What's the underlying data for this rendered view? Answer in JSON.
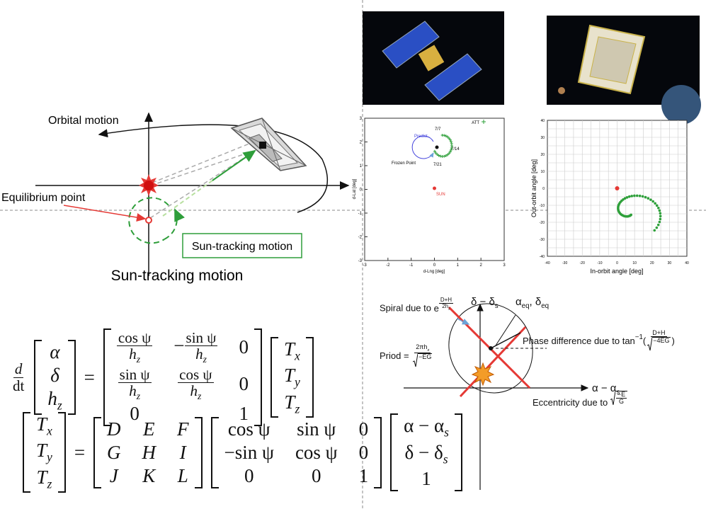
{
  "left_diagram": {
    "orbital_label": "Orbital motion",
    "equilibrium_label": "Equilibrium point",
    "box_label": "Sun-tracking motion",
    "caption": "Sun-tracking motion"
  },
  "plot_att": {
    "legend": "ATT",
    "predict": "Predict",
    "dates": [
      "7/7",
      "7/14",
      "7/21"
    ],
    "frozen": "Frozen Point",
    "sun": "SUN",
    "xlabel": "d-Lng [deg]",
    "ylabel": "d-Lat [deg]",
    "xticks": [
      "-3",
      "-2",
      "-1",
      "0",
      "1",
      "2",
      "3"
    ],
    "yticks": [
      "3",
      "2",
      "1",
      "0",
      "-1",
      "-2",
      "-3"
    ]
  },
  "plot_angle": {
    "xlabel": "In-orbit angle [deg]",
    "ylabel": "Out-orbit angle [deg]",
    "xticks": [
      "-40",
      "-30",
      "-20",
      "-10",
      "0",
      "10",
      "20",
      "30",
      "40"
    ],
    "yticks": [
      "40",
      "30",
      "20",
      "10",
      "0",
      "-10",
      "-20",
      "-30",
      "-40"
    ]
  },
  "phase": {
    "y_axis": {
      "b": "δ − δ",
      "s": "s"
    },
    "x_axis": {
      "b": "α − α",
      "s": "s"
    },
    "eq_point": [
      {
        "b": "α",
        "s": "eq"
      },
      ", ",
      {
        "b": "δ",
        "s": "eq"
      }
    ],
    "spiral": [
      "Spiral due to ",
      {
        "b": "e",
        "sup": {
          "num": "D+H",
          "den": {
            "b": "2h",
            "s": "z"
          }
        }
      }
    ],
    "phase_diff": [
      "Phase difference due to ",
      {
        "b": "tan",
        "sup": "−1"
      },
      "(",
      {
        "num": "D+H",
        "den": {
          "sqrt": "−4EG"
        }
      },
      ")"
    ],
    "period": [
      "Priod = ",
      {
        "num": {
          "b": "2πh",
          "s": "z"
        },
        "den": {
          "sqrt": "−EG"
        }
      }
    ],
    "eccentricity": [
      "Eccentricity due to ",
      {
        "sqrt": {
          "num": "−E",
          "den": "G"
        }
      }
    ]
  },
  "equation1": [
    {
      "num": "d",
      "den": "dt"
    },
    {
      "matrix": [
        [
          "α"
        ],
        [
          "δ"
        ],
        [
          {
            "b": "h",
            "s": "z"
          }
        ]
      ]
    },
    "=",
    {
      "matrix": [
        [
          {
            "num": "cos ψ",
            "den": {
              "b": "h",
              "s": "z"
            }
          },
          [
            "−",
            {
              "num": "sin ψ",
              "den": {
                "b": "h",
                "s": "z"
              }
            }
          ],
          "0"
        ],
        [
          {
            "num": "sin ψ",
            "den": {
              "b": "h",
              "s": "z"
            }
          },
          {
            "num": "cos ψ",
            "den": {
              "b": "h",
              "s": "z"
            }
          },
          "0"
        ],
        [
          "0",
          null,
          "1"
        ]
      ]
    },
    {
      "matrix": [
        [
          {
            "b": "T",
            "s": "x"
          }
        ],
        [
          {
            "b": "T",
            "s": "y"
          }
        ],
        [
          {
            "b": "T",
            "s": "z"
          }
        ]
      ]
    }
  ],
  "equation2": [
    {
      "matrix": [
        [
          {
            "b": "T",
            "s": "x"
          }
        ],
        [
          {
            "b": "T",
            "s": "y"
          }
        ],
        [
          {
            "b": "T",
            "s": "z"
          }
        ]
      ]
    },
    "=",
    {
      "matrix": [
        [
          "D",
          "E",
          "F"
        ],
        [
          "G",
          "H",
          "I"
        ],
        [
          "J",
          "K",
          "L"
        ]
      ]
    },
    {
      "matrix": [
        [
          "cos ψ",
          "sin ψ",
          "0"
        ],
        [
          "−sin ψ",
          "cos ψ",
          "0"
        ],
        [
          "0",
          "0",
          "1"
        ]
      ]
    },
    {
      "matrix": [
        [
          {
            "b": "α − α",
            "s": "s"
          }
        ],
        [
          {
            "b": "δ − δ",
            "s": "s"
          }
        ],
        [
          "1"
        ]
      ]
    }
  ]
}
